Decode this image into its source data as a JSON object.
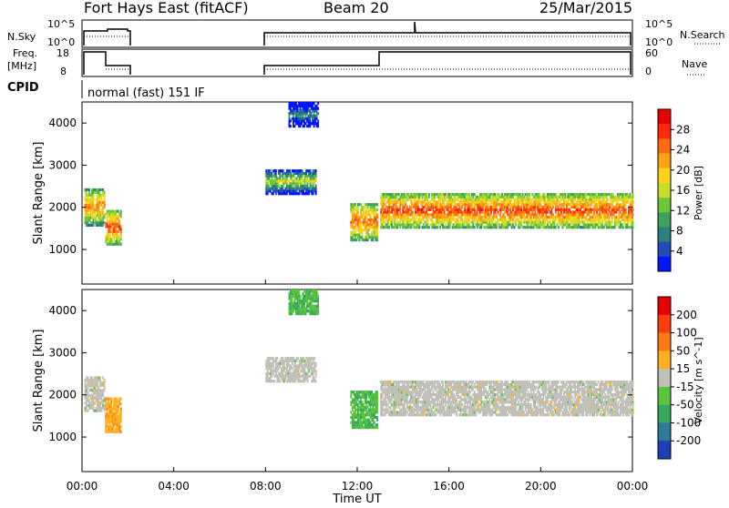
{
  "header": {
    "station": "Fort Hays East (fitACF)",
    "beam": "Beam 20",
    "date": "25/Mar/2015"
  },
  "strips": {
    "nsky_label": "N.Sky",
    "nsky_ticks": [
      "10^5",
      "10^0"
    ],
    "nsearch_label": "N.Search",
    "nsearch_ticks": [
      "10^5",
      "10^0"
    ],
    "freq_label_1": "Freq.",
    "freq_label_2": "[MHz]",
    "freq_ticks": [
      "18",
      "8"
    ],
    "nave_label": "Nave",
    "nave_ticks": [
      "60",
      "0"
    ],
    "cpid_label": "CPID",
    "cpid_value": "normal (fast) 151 IF"
  },
  "chart_data": {
    "type": "heatmap",
    "x_axis": {
      "label": "Time UT",
      "ticks": [
        "00:00",
        "04:00",
        "08:00",
        "12:00",
        "16:00",
        "20:00",
        "00:00"
      ],
      "range_hours": [
        0,
        24
      ]
    },
    "y_axis": {
      "label": "Slant Range [km]",
      "ticks": [
        1000,
        2000,
        3000,
        4000
      ],
      "range": [
        180,
        4500
      ]
    },
    "panels": [
      {
        "name": "power",
        "colorbar_label": "Power [dB]",
        "colorbar_ticks": [
          "28",
          "24",
          "20",
          "16",
          "12",
          "8",
          "4"
        ],
        "colors": [
          "#0016ff",
          "#1f4fb5",
          "#2e7f7f",
          "#3ea35a",
          "#70c63a",
          "#c8dc2a",
          "#ffd21a",
          "#ffa214",
          "#ff6b0e",
          "#ff2a0a",
          "#e80000"
        ],
        "patches": [
          {
            "t0": 0.1,
            "t1": 1.0,
            "r0": 1550,
            "r1": 2450,
            "level": 0.75
          },
          {
            "t0": 1.0,
            "t1": 1.7,
            "r0": 1100,
            "r1": 1900,
            "level": 0.85
          },
          {
            "t0": 8.0,
            "t1": 10.2,
            "r0": 2300,
            "r1": 2900,
            "level": 0.5
          },
          {
            "t0": 9.0,
            "t1": 10.3,
            "r0": 3900,
            "r1": 4450,
            "level": 0.3
          },
          {
            "t0": 11.7,
            "t1": 12.9,
            "r0": 1200,
            "r1": 2100,
            "level": 0.8
          },
          {
            "t0": 13.0,
            "t1": 24.0,
            "r0": 1500,
            "r1": 2300,
            "level": 0.85
          }
        ]
      },
      {
        "name": "velocity",
        "colorbar_label": "Velocity [m s^-1]",
        "colorbar_ticks": [
          "200",
          "100",
          "50",
          "15",
          "-15",
          "-50",
          "-100",
          "-200"
        ],
        "colors": [
          "#1f3fb5",
          "#2f7a9a",
          "#39a85f",
          "#5bc43c",
          "#c0c0b8",
          "#ffb020",
          "#ff7a14",
          "#ff3c0c",
          "#e80000"
        ],
        "patches": [
          {
            "t0": 0.1,
            "t1": 1.0,
            "r0": 1600,
            "r1": 2400,
            "level": 0.5
          },
          {
            "t0": 1.0,
            "t1": 1.7,
            "r0": 1100,
            "r1": 1900,
            "level": 0.62
          },
          {
            "t0": 8.0,
            "t1": 10.2,
            "r0": 2300,
            "r1": 2900,
            "level": 0.5
          },
          {
            "t0": 9.0,
            "t1": 10.3,
            "r0": 3900,
            "r1": 4450,
            "level": 0.35
          },
          {
            "t0": 11.7,
            "t1": 12.9,
            "r0": 1200,
            "r1": 2100,
            "level": 0.35
          },
          {
            "t0": 13.0,
            "t1": 24.0,
            "r0": 1500,
            "r1": 2300,
            "level": 0.5
          }
        ]
      }
    ],
    "grid": false
  }
}
